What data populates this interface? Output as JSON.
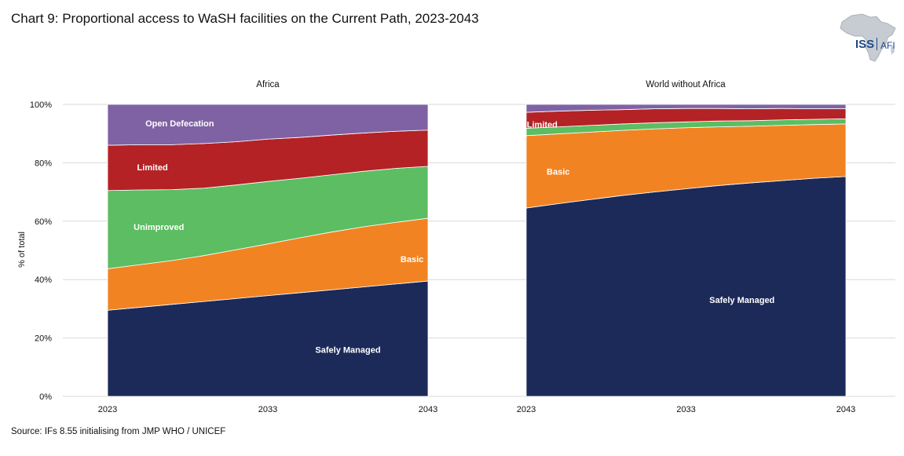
{
  "title": "Chart 9: Proportional access to WaSH facilities on the Current Path, 2023-2043",
  "source": "Source: IFs 8.55 initialising from JMP WHO / UNICEF",
  "logo": {
    "main": "ISS",
    "sub": "AFI"
  },
  "chart_data": {
    "type": "area",
    "stacked": true,
    "ylabel": "% of total",
    "ylim": [
      0,
      100
    ],
    "y_ticks": [
      "0%",
      "20%",
      "40%",
      "60%",
      "80%",
      "100%"
    ],
    "x_ticks": [
      "2023",
      "2033",
      "2043"
    ],
    "series_names": [
      "Safely Managed",
      "Basic",
      "Unimproved",
      "Limited",
      "Open Defecation"
    ],
    "colors": {
      "Safely Managed": "#1b2a59",
      "Basic": "#f28322",
      "Unimproved": "#5cbd62",
      "Limited": "#b42226",
      "Open Defecation": "#7f62a3"
    },
    "panels": [
      {
        "title": "Africa",
        "x": [
          2023,
          2025,
          2027,
          2029,
          2031,
          2033,
          2035,
          2037,
          2039,
          2041,
          2043
        ],
        "series": [
          {
            "name": "Safely Managed",
            "values": [
              29.5,
              30.5,
              31.5,
              32.5,
              33.5,
              34.5,
              35.5,
              36.5,
              37.5,
              38.5,
              39.5
            ]
          },
          {
            "name": "Basic",
            "values": [
              14.2,
              14.6,
              15.0,
              15.7,
              16.7,
              17.7,
              18.8,
              19.8,
              20.6,
              21.1,
              21.5
            ]
          },
          {
            "name": "Unimproved",
            "values": [
              26.8,
              25.6,
              24.3,
              23.1,
              22.2,
              21.4,
              20.4,
              19.6,
              19.0,
              18.5,
              17.8
            ]
          },
          {
            "name": "Limited",
            "values": [
              15.5,
              15.5,
              15.4,
              15.3,
              14.8,
              14.5,
              14.0,
              13.6,
              13.1,
              12.7,
              12.4
            ]
          },
          {
            "name": "Open Defecation",
            "values": [
              14.0,
              13.8,
              13.8,
              13.4,
              12.8,
              11.9,
              11.3,
              10.5,
              9.8,
              9.2,
              8.8
            ]
          }
        ],
        "labels": [
          {
            "series": "Safely Managed",
            "text": "Safely Managed",
            "x": 2038,
            "y": 16
          },
          {
            "series": "Basic",
            "text": "Basic",
            "x": 2042,
            "y": 47
          },
          {
            "series": "Unimproved",
            "text": "Unimproved",
            "x": 2026.2,
            "y": 58
          },
          {
            "series": "Limited",
            "text": "Limited",
            "x": 2025.8,
            "y": 78.5
          },
          {
            "series": "Open Defecation",
            "text": "Open Defecation",
            "x": 2027.5,
            "y": 93.5
          }
        ]
      },
      {
        "title": "World without Africa",
        "x": [
          2023,
          2025,
          2027,
          2029,
          2031,
          2033,
          2035,
          2037,
          2039,
          2041,
          2043
        ],
        "series": [
          {
            "name": "Safely Managed",
            "values": [
              64.5,
              66.0,
              67.4,
              68.8,
              70.0,
              71.1,
              72.2,
              73.1,
              73.9,
              74.7,
              75.3
            ]
          },
          {
            "name": "Basic",
            "values": [
              24.8,
              23.9,
              23.1,
              22.3,
              21.6,
              20.9,
              20.1,
              19.4,
              18.9,
              18.4,
              18.0
            ]
          },
          {
            "name": "Unimproved",
            "values": [
              2.5,
              2.4,
              2.3,
              2.2,
              2.1,
              2.0,
              2.0,
              1.9,
              1.9,
              1.8,
              1.8
            ]
          },
          {
            "name": "Limited",
            "values": [
              5.5,
              5.4,
              5.2,
              4.9,
              4.8,
              4.6,
              4.3,
              4.1,
              3.9,
              3.6,
              3.4
            ]
          },
          {
            "name": "Open Defecation",
            "values": [
              2.7,
              2.3,
              2.0,
              1.8,
              1.5,
              1.4,
              1.4,
              1.5,
              1.4,
              1.5,
              1.5
            ]
          }
        ],
        "labels": [
          {
            "series": "Safely Managed",
            "text": "Safely Managed",
            "x": 2036.5,
            "y": 33
          },
          {
            "series": "Basic",
            "text": "Basic",
            "x": 2025,
            "y": 77
          },
          {
            "series": "Limited",
            "text": "Limited",
            "x": 2024,
            "y": 93.2
          }
        ]
      }
    ]
  }
}
